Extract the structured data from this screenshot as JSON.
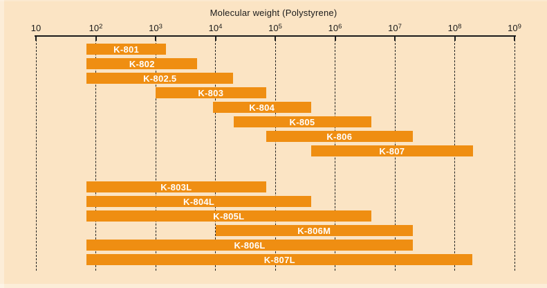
{
  "colors": {
    "background": "#FBE4C4",
    "bar": "#EF8E12",
    "axis_text": "#1A1A1A",
    "bar_label_text": "#FFFFFF"
  },
  "chart_data": {
    "type": "bar",
    "subtype": "horizontal-log-range",
    "title": "Molecular weight (Polystyrene)",
    "xlabel": "Molecular weight (Polystyrene)",
    "x_scale": "log10",
    "xlim": [
      10,
      1000000000
    ],
    "grid": "vertical-dashed",
    "legend_position": "none",
    "x_ticks": [
      {
        "base": "10",
        "exp": "",
        "value": 10,
        "log": 1
      },
      {
        "base": "10",
        "exp": "2",
        "value": 100,
        "log": 2
      },
      {
        "base": "10",
        "exp": "3",
        "value": 1000,
        "log": 3
      },
      {
        "base": "10",
        "exp": "4",
        "value": 10000,
        "log": 4
      },
      {
        "base": "10",
        "exp": "5",
        "value": 100000,
        "log": 5
      },
      {
        "base": "10",
        "exp": "6",
        "value": 1000000,
        "log": 6
      },
      {
        "base": "10",
        "exp": "7",
        "value": 10000000,
        "log": 7
      },
      {
        "base": "10",
        "exp": "8",
        "value": 100000000,
        "log": 8
      },
      {
        "base": "10",
        "exp": "9",
        "value": 1000000000,
        "log": 9
      }
    ],
    "rows": [
      {
        "label": "K-801",
        "mw_min": 70,
        "mw_max": 1500,
        "group": 1
      },
      {
        "label": "K-802",
        "mw_min": 70,
        "mw_max": 5000,
        "group": 1
      },
      {
        "label": "K-802.5",
        "mw_min": 70,
        "mw_max": 20000,
        "group": 1
      },
      {
        "label": "K-803",
        "mw_min": 1000,
        "mw_max": 70000,
        "group": 1
      },
      {
        "label": "K-804",
        "mw_min": 9000,
        "mw_max": 400000,
        "group": 1
      },
      {
        "label": "K-805",
        "mw_min": 20000,
        "mw_max": 4000000,
        "group": 1
      },
      {
        "label": "K-806",
        "mw_min": 70000,
        "mw_max": 20000000,
        "group": 1
      },
      {
        "label": "K-807",
        "mw_min": 400000,
        "mw_max": 200000000,
        "group": 1
      },
      {
        "label": "K-803L",
        "mw_min": 70,
        "mw_max": 70000,
        "group": 2
      },
      {
        "label": "K-804L",
        "mw_min": 70,
        "mw_max": 400000,
        "group": 2
      },
      {
        "label": "K-805L",
        "mw_min": 70,
        "mw_max": 4000000,
        "group": 2
      },
      {
        "label": "K-806M",
        "mw_min": 10000,
        "mw_max": 20000000,
        "group": 2
      },
      {
        "label": "K-806L",
        "mw_min": 70,
        "mw_max": 20000000,
        "group": 2
      },
      {
        "label": "K-807L",
        "mw_min": 70,
        "mw_max": 200000000,
        "group": 2
      }
    ]
  }
}
